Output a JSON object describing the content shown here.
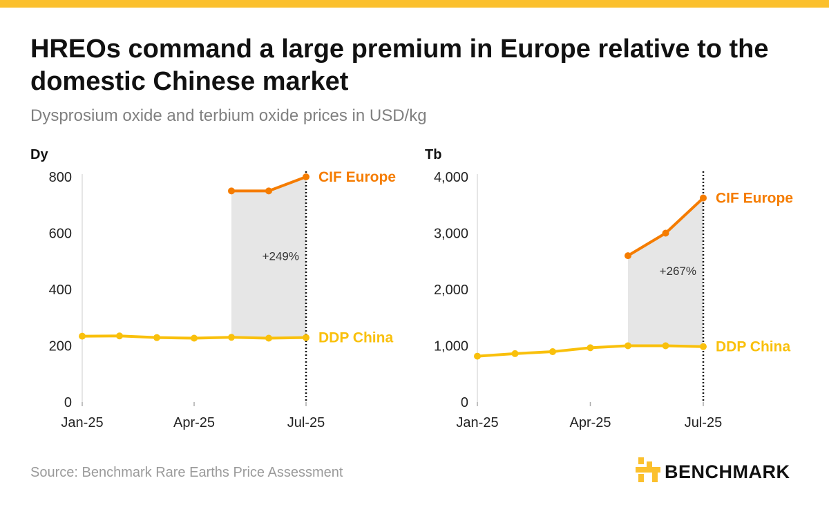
{
  "title": "HREOs command a large premium in Europe relative to the domestic Chinese market",
  "subtitle": "Dysprosium oxide and terbium oxide prices in USD/kg",
  "source": "Source: Benchmark Rare Earths Price Assessment",
  "brand": "BENCHMARK",
  "colors": {
    "accent_bar": "#FBC02D",
    "europe": "#F57C00",
    "china": "#F9C00C",
    "premium_fill": "#E6E6E6",
    "axis": "#DDDDDD",
    "text": "#222222"
  },
  "chart_data": [
    {
      "type": "line",
      "panel_label": "Dy",
      "x_ticks": [
        "Jan-25",
        "Apr-25",
        "Jul-25"
      ],
      "x_tick_pos": [
        0,
        3,
        6
      ],
      "ylim": [
        0,
        800
      ],
      "y_ticks": [
        0,
        200,
        400,
        600,
        800
      ],
      "y_tick_labels": [
        "0",
        "200",
        "400",
        "600",
        "800"
      ],
      "grid": false,
      "series": [
        {
          "name": "CIF Europe",
          "color": "#F57C00",
          "x": [
            4,
            5,
            6
          ],
          "values": [
            750,
            750,
            800
          ]
        },
        {
          "name": "DDP China",
          "color": "#F9C00C",
          "x": [
            0,
            1,
            2,
            3,
            4,
            5,
            6
          ],
          "values": [
            234,
            235,
            229,
            227,
            230,
            227,
            229
          ]
        }
      ],
      "shaded_between": [
        "CIF Europe",
        "DDP China"
      ],
      "annotation": "+249%",
      "vline_x": 6
    },
    {
      "type": "line",
      "panel_label": "Tb",
      "x_ticks": [
        "Jan-25",
        "Apr-25",
        "Jul-25"
      ],
      "x_tick_pos": [
        0,
        3,
        6
      ],
      "ylim": [
        0,
        4000
      ],
      "y_ticks": [
        0,
        1000,
        2000,
        3000,
        4000
      ],
      "y_tick_labels": [
        "0",
        "1,000",
        "2,000",
        "3,000",
        "4,000"
      ],
      "grid": false,
      "series": [
        {
          "name": "CIF Europe",
          "color": "#F57C00",
          "x": [
            4,
            5,
            6
          ],
          "values": [
            2600,
            3000,
            3625
          ]
        },
        {
          "name": "DDP China",
          "color": "#F9C00C",
          "x": [
            0,
            1,
            2,
            3,
            4,
            5,
            6
          ],
          "values": [
            815,
            860,
            895,
            965,
            1000,
            1000,
            985
          ]
        }
      ],
      "shaded_between": [
        "CIF Europe",
        "DDP China"
      ],
      "annotation": "+267%",
      "vline_x": 6
    }
  ]
}
